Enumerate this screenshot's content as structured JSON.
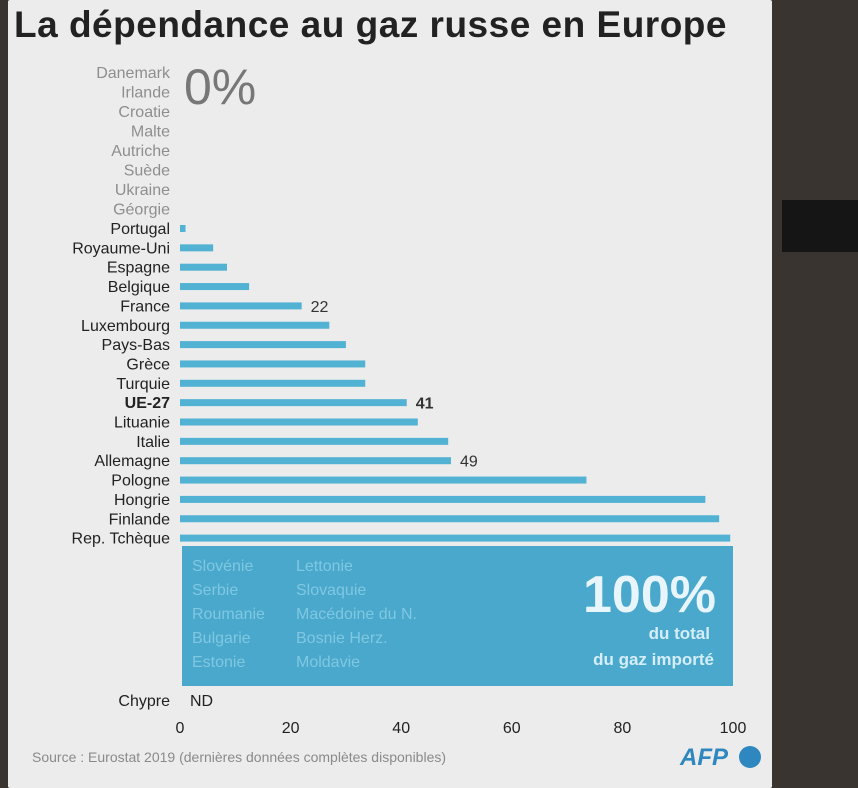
{
  "header": {
    "title": "La dépendance au gaz russe en Europe",
    "zero_label": "0%"
  },
  "footer": {
    "source": "Source : Eurostat 2019 (dernières données complètes disponibles)",
    "logo": "AFP"
  },
  "colors": {
    "bar": "#52b2d3",
    "box": "#4aa8cc",
    "muted_text": "#8a8a8a",
    "text": "#222222"
  },
  "chart_data": {
    "type": "bar",
    "orientation": "horizontal",
    "xlim": [
      0,
      100
    ],
    "x_ticks": [
      "0",
      "20",
      "40",
      "60",
      "80",
      "100"
    ],
    "zero_countries": [
      "Danemark",
      "Irlande",
      "Croatie",
      "Malte",
      "Autriche",
      "Suède",
      "Ukraine",
      "Géorgie"
    ],
    "categories": [
      "Portugal",
      "Royaume-Uni",
      "Espagne",
      "Belgique",
      "France",
      "Luxembourg",
      "Pays-Bas",
      "Grèce",
      "Turquie",
      "UE-27",
      "Lituanie",
      "Italie",
      "Allemagne",
      "Pologne",
      "Hongrie",
      "Finlande",
      "Rep. Tchèque"
    ],
    "values": [
      1,
      6,
      8.5,
      12.5,
      22,
      27,
      30,
      33.5,
      33.5,
      41,
      43,
      48.5,
      49,
      73.5,
      95,
      97.5,
      99.5
    ],
    "value_labels": [
      "",
      "",
      "",
      "",
      "22",
      "",
      "",
      "",
      "",
      "41",
      "",
      "",
      "49",
      "",
      "",
      "",
      ""
    ],
    "highlight": "UE-27",
    "full_countries_col1": [
      "Slovénie",
      "Serbie",
      "Roumanie",
      "Bulgarie",
      "Estonie"
    ],
    "full_countries_col2": [
      "Lettonie",
      "Slovaquie",
      "Macédoine du N.",
      "Bosnie Herz.",
      "Moldavie"
    ],
    "full_value": "100%",
    "full_caption_1": "du total",
    "full_caption_2": "du gaz importé",
    "nd_country": "Chypre",
    "nd_label": "ND"
  }
}
